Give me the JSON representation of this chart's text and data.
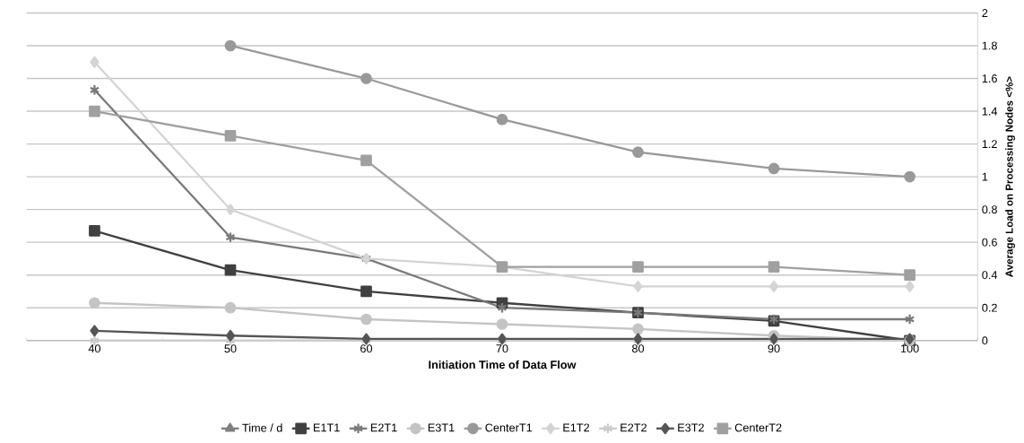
{
  "chart_data": {
    "type": "line",
    "xlabel": "Initiation Time of Data Flow",
    "ylabel": "Average Load on Processing Nodes <%>",
    "categories": [
      "40",
      "50",
      "60",
      "70",
      "80",
      "90",
      "100"
    ],
    "ylim": [
      0,
      2
    ],
    "yticks": [
      0,
      0.2,
      0.4,
      0.6,
      0.8,
      1,
      1.2,
      1.4,
      1.6,
      1.8,
      2
    ],
    "grid": "y",
    "legend": "bottom",
    "line_style": "solid",
    "series": [
      {
        "name": "Time / d",
        "color": "#7f7f7f",
        "marker": "triangle",
        "values": [
          null,
          null,
          null,
          null,
          null,
          null,
          null
        ]
      },
      {
        "name": "E1T1",
        "color": "#404040",
        "marker": "square",
        "values": [
          0.67,
          0.43,
          0.3,
          0.23,
          0.17,
          0.12,
          0.0
        ]
      },
      {
        "name": "E2T1",
        "color": "#7a7a7a",
        "marker": "cross",
        "values": [
          1.53,
          0.63,
          0.5,
          0.2,
          0.17,
          0.13,
          0.13
        ]
      },
      {
        "name": "E3T1",
        "color": "#c4c4c4",
        "marker": "circle",
        "values": [
          0.23,
          0.2,
          0.13,
          0.1,
          0.07,
          0.03,
          0.0
        ]
      },
      {
        "name": "CenterT1",
        "color": "#999999",
        "marker": "circle",
        "values": [
          null,
          1.8,
          1.6,
          1.35,
          1.15,
          1.05,
          1.0
        ]
      },
      {
        "name": "E1T2",
        "color": "#d4d4d4",
        "marker": "diamond",
        "values": [
          1.7,
          0.8,
          0.5,
          0.45,
          0.33,
          0.33,
          0.33
        ]
      },
      {
        "name": "E2T2",
        "color": "#cccccc",
        "marker": "cross",
        "values": [
          0,
          0,
          0,
          0,
          0,
          0,
          0
        ]
      },
      {
        "name": "E3T2",
        "color": "#555555",
        "marker": "diamond",
        "values": [
          0.06,
          0.03,
          0.01,
          0.01,
          0.01,
          0.01,
          0.01
        ]
      },
      {
        "name": "CenterT2",
        "color": "#a0a0a0",
        "marker": "square",
        "values": [
          1.4,
          1.25,
          1.1,
          0.45,
          0.45,
          0.45,
          0.4
        ]
      }
    ]
  }
}
